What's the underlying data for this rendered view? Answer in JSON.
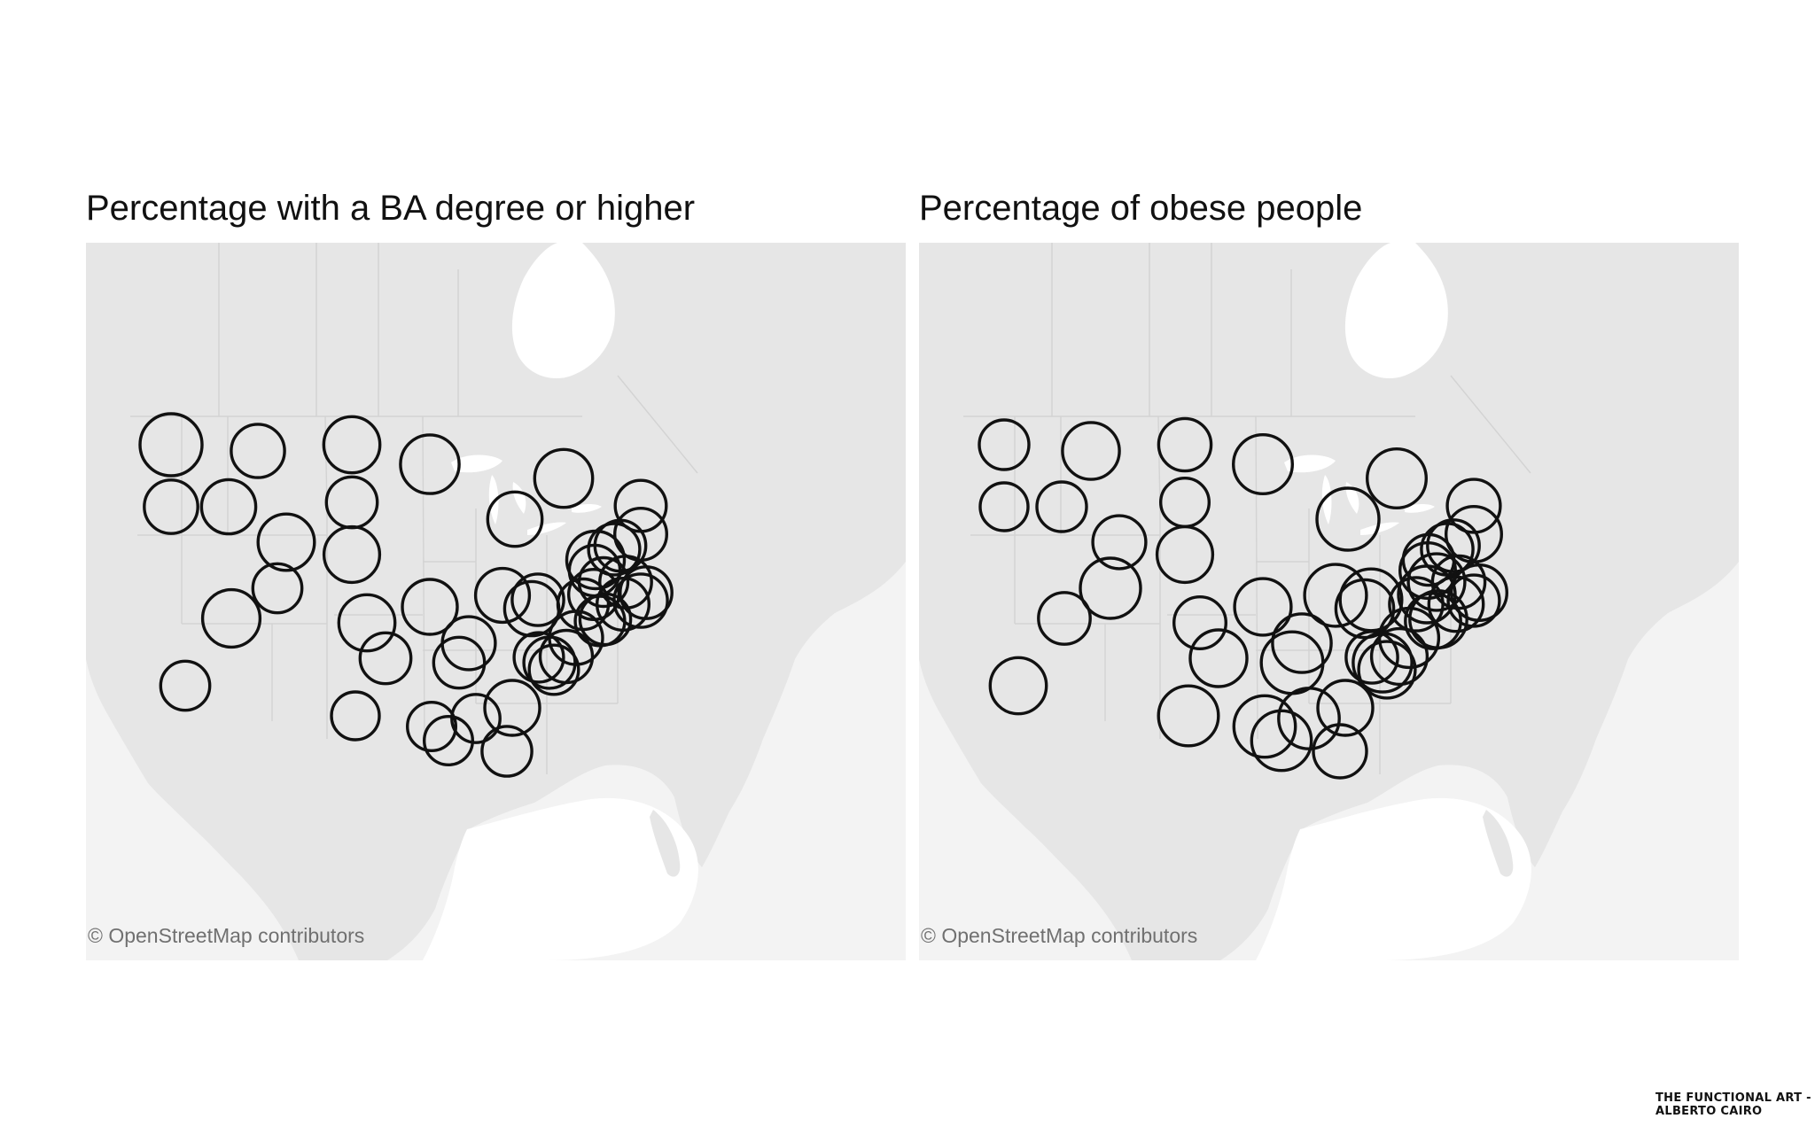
{
  "maps": [
    {
      "title": "Percentage with a BA degree or higher",
      "attribution": "© OpenStreetMap contributors",
      "symbol": "circle",
      "circle_size_percent": [
        58.7,
        37.5,
        39.6,
        26.6,
        26.7,
        47.2,
        44.7,
        37.1,
        44.3,
        31.2,
        42.9,
        44.4,
        31.2,
        41.2,
        50.3,
        48.5,
        39.9,
        39.4,
        47.8,
        31.2,
        32.1,
        41.2,
        36.4,
        32.7,
        38.6,
        25.1,
        23.7,
        24.4,
        25.1,
        28.3,
        34.7,
        36.9,
        30.5,
        29.4,
        26.1,
        27.6,
        33.7,
        27.2,
        27.5,
        30.1,
        37.2,
        33.4,
        33.3,
        31.2,
        32.2,
        33.7,
        31.6,
        30.6
      ]
    },
    {
      "title": "Percentage of obese people",
      "attribution": "© OpenStreetMap contributors",
      "symbol": "circle",
      "circle_size_percent": [
        27.1,
        26.0,
        27.2,
        34.1,
        31.4,
        28.5,
        29.3,
        31.9,
        29.0,
        26.3,
        31.1,
        28.7,
        31.8,
        31.6,
        33.3,
        33.2,
        35.2,
        32.4,
        27.8,
        35.0,
        33.0,
        30.6,
        33.0,
        35.0,
        35.1,
        34.8,
        33.8,
        34.3,
        33.7,
        29.5,
        31.1,
        33.4,
        32.0,
        31.7,
        31.6,
        28.4,
        30.2,
        31.6,
        30.8,
        29.6,
        28.2,
        31.0,
        29.0,
        28.5,
        28.4,
        30.9,
        29.3,
        30.9
      ]
    }
  ],
  "credit": {
    "line1": "THE FUNCTIONAL ART -",
    "line2": "ALBERTO CAIRO"
  }
}
